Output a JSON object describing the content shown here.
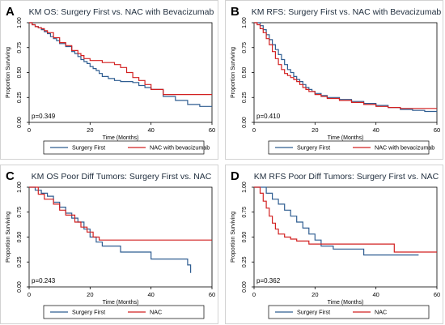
{
  "colors": {
    "series_a": "#2f5d91",
    "series_b": "#d22020",
    "frame": "#000000",
    "panel_bg": "#ffffff",
    "grid": "#dfe3e8"
  },
  "chart_data": [
    {
      "panel": "A",
      "type": "line",
      "step": true,
      "title": "KM OS: Surgery First vs. NAC with Bevacizumab",
      "xlabel": "Time (Months)",
      "ylabel": "Proportion Surviving",
      "xlim": [
        0,
        60
      ],
      "ylim": [
        0,
        1
      ],
      "xticks": [
        0,
        20,
        40,
        60
      ],
      "yticks": [
        "0.00",
        "0.25",
        "0.50",
        "0.75",
        "1.00"
      ],
      "pvalue": "p=0.349",
      "legend_position": "bottom",
      "series": [
        {
          "name": "Surgery First",
          "color": "#2f5d91",
          "x": [
            0,
            1,
            2,
            3,
            4,
            5,
            6,
            7,
            8,
            9,
            10,
            12,
            14,
            15,
            16,
            17,
            18,
            19,
            20,
            21,
            22,
            23,
            24,
            26,
            28,
            30,
            32,
            34,
            36,
            38,
            40,
            44,
            48,
            52,
            56,
            60
          ],
          "y": [
            1.0,
            0.98,
            0.96,
            0.95,
            0.93,
            0.91,
            0.89,
            0.86,
            0.84,
            0.82,
            0.79,
            0.76,
            0.71,
            0.69,
            0.66,
            0.63,
            0.61,
            0.59,
            0.56,
            0.54,
            0.52,
            0.49,
            0.46,
            0.44,
            0.42,
            0.41,
            0.41,
            0.4,
            0.37,
            0.35,
            0.33,
            0.26,
            0.22,
            0.18,
            0.16,
            0.16
          ]
        },
        {
          "name": "NAC with bevacizumab",
          "color": "#d22020",
          "x": [
            0,
            1,
            2,
            3,
            4,
            5,
            6,
            8,
            10,
            12,
            14,
            16,
            17,
            18,
            20,
            22,
            24,
            26,
            28,
            30,
            32,
            34,
            36,
            38,
            40,
            44,
            60
          ],
          "y": [
            1.0,
            0.98,
            0.96,
            0.95,
            0.94,
            0.92,
            0.9,
            0.85,
            0.8,
            0.77,
            0.72,
            0.69,
            0.67,
            0.64,
            0.62,
            0.62,
            0.6,
            0.6,
            0.58,
            0.55,
            0.5,
            0.45,
            0.42,
            0.38,
            0.33,
            0.28,
            0.28
          ]
        }
      ]
    },
    {
      "panel": "B",
      "type": "line",
      "step": true,
      "title": "KM RFS: Surgery First vs. NAC with Bevacizumab",
      "xlabel": "Time (Months)",
      "ylabel": "Proportion Surviving",
      "xlim": [
        0,
        60
      ],
      "ylim": [
        0,
        1
      ],
      "xticks": [
        0,
        20,
        40,
        60
      ],
      "yticks": [
        "0.00",
        "0.25",
        "0.50",
        "0.75",
        "1.00"
      ],
      "pvalue": "p=0.410",
      "legend_position": "bottom",
      "series": [
        {
          "name": "Surgery First",
          "color": "#2f5d91",
          "x": [
            0,
            2,
            3,
            4,
            5,
            6,
            7,
            8,
            9,
            10,
            11,
            12,
            13,
            14,
            15,
            16,
            17,
            18,
            19,
            20,
            22,
            24,
            28,
            32,
            36,
            40,
            44,
            48,
            52,
            56,
            60
          ],
          "y": [
            1.0,
            0.97,
            0.93,
            0.88,
            0.83,
            0.78,
            0.73,
            0.68,
            0.63,
            0.58,
            0.53,
            0.5,
            0.46,
            0.43,
            0.41,
            0.38,
            0.35,
            0.33,
            0.31,
            0.29,
            0.27,
            0.25,
            0.23,
            0.21,
            0.19,
            0.17,
            0.15,
            0.13,
            0.12,
            0.11,
            0.11
          ]
        },
        {
          "name": "NAC with bevacizumab",
          "color": "#d22020",
          "x": [
            0,
            1,
            2,
            3,
            4,
            5,
            6,
            7,
            8,
            9,
            10,
            11,
            12,
            13,
            14,
            15,
            16,
            17,
            18,
            20,
            22,
            24,
            28,
            32,
            36,
            40,
            44,
            48,
            60
          ],
          "y": [
            1.0,
            0.98,
            0.94,
            0.9,
            0.84,
            0.78,
            0.71,
            0.64,
            0.58,
            0.53,
            0.49,
            0.47,
            0.45,
            0.43,
            0.41,
            0.38,
            0.35,
            0.33,
            0.31,
            0.28,
            0.26,
            0.24,
            0.22,
            0.2,
            0.18,
            0.16,
            0.15,
            0.14,
            0.14
          ]
        }
      ]
    },
    {
      "panel": "C",
      "type": "line",
      "step": true,
      "title": "KM OS Poor Diff Tumors: Surgery First vs. NAC",
      "xlabel": "Time (Months)",
      "ylabel": "Proportion Surviving",
      "xlim": [
        0,
        60
      ],
      "ylim": [
        0,
        1
      ],
      "xticks": [
        0,
        20,
        40,
        60
      ],
      "yticks": [
        "0.00",
        "0.25",
        "0.50",
        "0.75",
        "1.00"
      ],
      "pvalue": "p=0.243",
      "legend_position": "bottom",
      "series": [
        {
          "name": "Surgery First",
          "color": "#2f5d91",
          "x": [
            0,
            2,
            4,
            6,
            8,
            10,
            12,
            14,
            16,
            18,
            20,
            22,
            24,
            30,
            40,
            52,
            53
          ],
          "y": [
            1.0,
            0.97,
            0.94,
            0.91,
            0.85,
            0.8,
            0.74,
            0.69,
            0.65,
            0.58,
            0.5,
            0.45,
            0.41,
            0.35,
            0.28,
            0.22,
            0.14
          ]
        },
        {
          "name": "NAC",
          "color": "#d22020",
          "x": [
            0,
            3,
            5,
            8,
            10,
            12,
            15,
            17,
            19,
            21,
            23,
            60
          ],
          "y": [
            1.0,
            0.93,
            0.88,
            0.83,
            0.77,
            0.72,
            0.65,
            0.6,
            0.55,
            0.5,
            0.47,
            0.47
          ]
        }
      ]
    },
    {
      "panel": "D",
      "type": "line",
      "step": true,
      "title": "KM RFS Poor Diff Tumors: Surgery First vs. NAC",
      "xlabel": "Time (Months)",
      "ylabel": "Proportion Surviving",
      "xlim": [
        0,
        60
      ],
      "ylim": [
        0,
        1
      ],
      "xticks": [
        0,
        20,
        40,
        60
      ],
      "yticks": [
        "0.00",
        "0.25",
        "0.50",
        "0.75",
        "1.00"
      ],
      "pvalue": "p=0.362",
      "legend_position": "bottom",
      "series": [
        {
          "name": "Surgery First",
          "color": "#2f5d91",
          "x": [
            0,
            4,
            6,
            8,
            10,
            12,
            14,
            16,
            18,
            20,
            22,
            26,
            36,
            54
          ],
          "y": [
            1.0,
            0.94,
            0.88,
            0.83,
            0.77,
            0.71,
            0.65,
            0.59,
            0.53,
            0.47,
            0.41,
            0.38,
            0.32,
            0.32
          ]
        },
        {
          "name": "NAC",
          "color": "#d22020",
          "x": [
            0,
            2,
            3,
            4,
            5,
            6,
            7,
            8,
            10,
            12,
            14,
            18,
            46,
            60
          ],
          "y": [
            1.0,
            0.94,
            0.86,
            0.79,
            0.71,
            0.64,
            0.58,
            0.53,
            0.5,
            0.48,
            0.46,
            0.43,
            0.35,
            0.35
          ]
        }
      ]
    }
  ]
}
